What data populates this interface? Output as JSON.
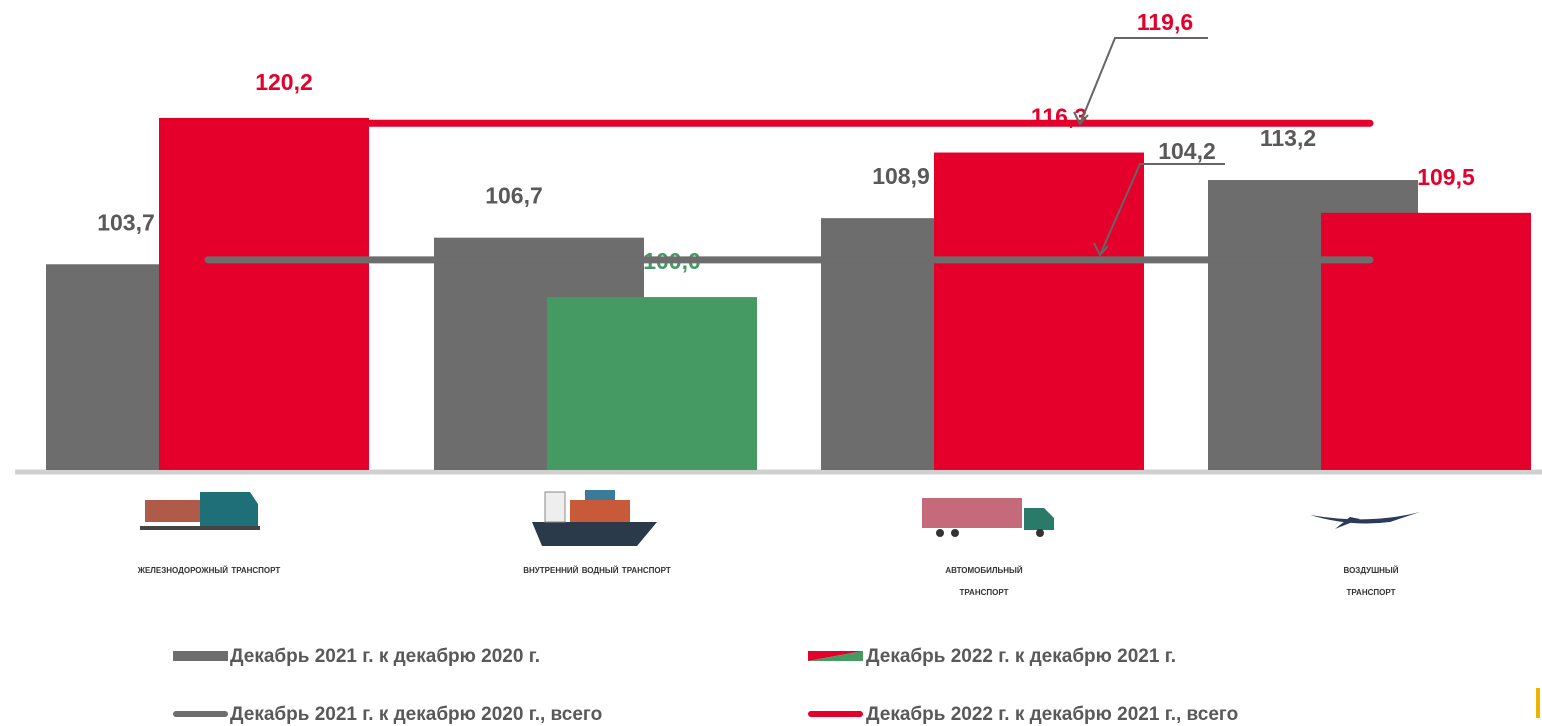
{
  "chart_data": {
    "type": "bar",
    "categories": [
      "Железнодорожный транспорт",
      "Внутренний водный транспорт",
      "Автомобильный транспорт",
      "Воздушный транспорт"
    ],
    "series": [
      {
        "name": "Декабрь 2021 г. к декабрю 2020 г.",
        "color": "#6d6d6d",
        "values": [
          103.7,
          106.7,
          108.9,
          113.2
        ],
        "value_labels": [
          "103,7",
          "106,7",
          "108,9",
          "113,2"
        ]
      },
      {
        "name": "Декабрь 2022 г. к декабрю 2021 г.",
        "colors": [
          "#e4002b",
          "#459a63",
          "#e4002b",
          "#e4002b"
        ],
        "values": [
          120.2,
          100.0,
          116.3,
          109.5
        ],
        "value_labels": [
          "120,2",
          "100,0",
          "116,3",
          "109,5"
        ]
      }
    ],
    "lines": [
      {
        "name": "Декабрь 2021 г. к декабрю 2020 г., всего",
        "color": "#6d6d6d",
        "value": 104.2,
        "value_label": "104,2"
      },
      {
        "name": "Декабрь 2022 г. к декабрю 2021 г., всего",
        "color": "#e4002b",
        "value": 119.6,
        "value_label": "119,6"
      }
    ],
    "ylim": [
      80.5,
      133.5
    ]
  }
}
